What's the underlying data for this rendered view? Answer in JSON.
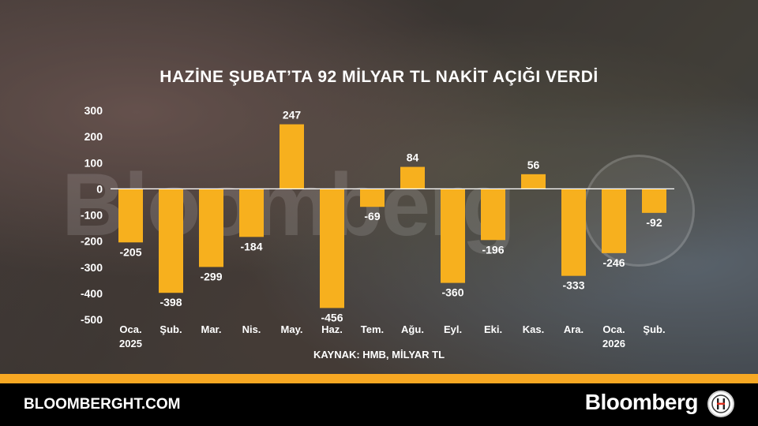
{
  "header": {
    "title": "HAZİNE ŞUBAT’TA 92 MİLYAR TL NAKİT AÇIĞI VERDİ"
  },
  "chart_data": {
    "type": "bar",
    "title": "HAZİNE ŞUBAT’TA 92 MİLYAR TL NAKİT AÇIĞI VERDİ",
    "categories": [
      [
        "Oca.",
        "2025"
      ],
      [
        "Şub.",
        ""
      ],
      [
        "Mar.",
        ""
      ],
      [
        "Nis.",
        ""
      ],
      [
        "May.",
        ""
      ],
      [
        "Haz.",
        ""
      ],
      [
        "Tem.",
        ""
      ],
      [
        "Ağu.",
        ""
      ],
      [
        "Eyl.",
        ""
      ],
      [
        "Eki.",
        ""
      ],
      [
        "Kas.",
        ""
      ],
      [
        "Ara.",
        ""
      ],
      [
        "Oca.",
        "2026"
      ],
      [
        "Şub.",
        ""
      ]
    ],
    "values": [
      -205,
      -398,
      -299,
      -184,
      247,
      -456,
      -69,
      84,
      -360,
      -196,
      56,
      -333,
      -246,
      -92
    ],
    "data_labels": [
      "-205",
      "-398",
      "-299",
      "-184",
      "247",
      "-456",
      "-69",
      "84",
      "-360",
      "-196",
      "56",
      "-333",
      "-246",
      "-92"
    ],
    "ylim": [
      -500,
      300
    ],
    "yticks": [
      300,
      200,
      100,
      0,
      -100,
      -200,
      -300,
      -400,
      -500
    ],
    "xlabel": "",
    "ylabel": "",
    "grid": false,
    "bar_color": "#f7b01e",
    "axis_color": "#ffffff"
  },
  "source": {
    "text": "KAYNAK: HMB, MİLYAR TL"
  },
  "watermark": {
    "text": "Bloomberg"
  },
  "footer": {
    "site": "BLOOMBERGHT.COM",
    "brand": "Bloomberg",
    "logo_icon": "bloomberght-logo-icon",
    "accent": "#f7a823"
  }
}
